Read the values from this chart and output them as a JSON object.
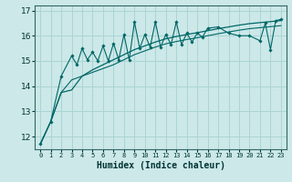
{
  "xlabel": "Humidex (Indice chaleur)",
  "bg_color": "#cce8e8",
  "grid_color": "#aad4d4",
  "line_color": "#006666",
  "xlim": [
    -0.5,
    23.5
  ],
  "ylim": [
    11.5,
    17.2
  ],
  "yticks": [
    12,
    13,
    14,
    15,
    16,
    17
  ],
  "xtick_labels": [
    "0",
    "1",
    "2",
    "3",
    "4",
    "5",
    "6",
    "7",
    "8",
    "9",
    "10",
    "11",
    "12",
    "13",
    "14",
    "15",
    "16",
    "17",
    "18",
    "19",
    "20",
    "21",
    "22",
    "23"
  ],
  "x_smooth": [
    0,
    1,
    2,
    3,
    4,
    5,
    6,
    7,
    8,
    9,
    10,
    11,
    12,
    13,
    14,
    15,
    16,
    17,
    18,
    19,
    20,
    21,
    22,
    23
  ],
  "y_main": [
    11.7,
    12.6,
    13.75,
    13.85,
    14.4,
    14.65,
    14.85,
    15.05,
    15.25,
    15.45,
    15.6,
    15.75,
    15.88,
    15.97,
    16.05,
    16.12,
    16.2,
    16.28,
    16.35,
    16.42,
    16.48,
    16.52,
    16.56,
    16.6
  ],
  "y_lower": [
    11.7,
    12.6,
    13.75,
    14.25,
    14.4,
    14.55,
    14.7,
    14.85,
    15.05,
    15.25,
    15.4,
    15.55,
    15.68,
    15.77,
    15.85,
    15.92,
    16.0,
    16.08,
    16.15,
    16.22,
    16.28,
    16.32,
    16.36,
    16.4
  ],
  "x_zig": [
    0,
    1,
    2,
    3,
    3.5,
    4,
    4.5,
    5,
    5.5,
    6,
    6.5,
    7,
    7.5,
    8,
    8.5,
    9,
    9.5,
    10,
    10.5,
    11,
    11.5,
    12,
    12.5,
    13,
    13.5,
    14,
    14.5,
    15,
    15.5,
    16,
    17,
    18,
    19,
    20,
    21,
    21.5,
    22,
    22.5,
    23
  ],
  "y_zig": [
    11.7,
    12.6,
    14.4,
    15.2,
    14.85,
    15.5,
    15.05,
    15.35,
    15.0,
    15.6,
    15.0,
    15.7,
    15.05,
    16.05,
    15.05,
    16.55,
    15.5,
    16.05,
    15.55,
    16.55,
    15.55,
    16.05,
    15.65,
    16.55,
    15.65,
    16.1,
    15.75,
    16.1,
    15.95,
    16.3,
    16.35,
    16.1,
    16.0,
    16.0,
    15.8,
    16.5,
    15.45,
    16.6,
    16.65
  ]
}
